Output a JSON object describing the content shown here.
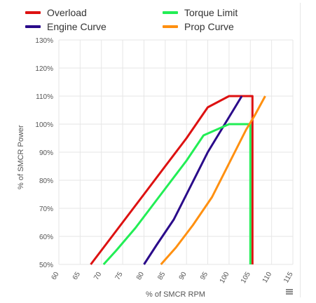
{
  "chart_data": {
    "type": "line",
    "xlabel": "% of SMCR RPM",
    "ylabel": "% of SMCR Power",
    "xlim": [
      60,
      115
    ],
    "ylim": [
      50,
      130
    ],
    "x_ticks": [
      "60",
      "65",
      "70",
      "75",
      "80",
      "85",
      "90",
      "95",
      "100",
      "105",
      "110",
      "115"
    ],
    "y_ticks": [
      "50%",
      "60%",
      "70%",
      "80%",
      "90%",
      "100%",
      "110%",
      "120%",
      "130%"
    ],
    "grid": true,
    "legend_position": "top",
    "series": [
      {
        "name": "Overload",
        "color": "#dd1111",
        "points": [
          [
            67.5,
            50
          ],
          [
            71,
            57
          ],
          [
            75,
            65
          ],
          [
            80,
            75
          ],
          [
            85,
            85
          ],
          [
            90,
            95
          ],
          [
            95,
            106
          ],
          [
            100,
            110
          ],
          [
            103,
            110
          ],
          [
            105.5,
            110
          ],
          [
            105.5,
            50
          ]
        ]
      },
      {
        "name": "Engine Curve",
        "color": "#2a0a8a",
        "points": [
          [
            80,
            50
          ],
          [
            83,
            57
          ],
          [
            87,
            66
          ],
          [
            91,
            78
          ],
          [
            95,
            90
          ],
          [
            99,
            100
          ],
          [
            101,
            105
          ],
          [
            103,
            110
          ]
        ]
      },
      {
        "name": "Torque Limit",
        "color": "#22ee55",
        "points": [
          [
            70.5,
            50
          ],
          [
            73.5,
            55
          ],
          [
            78,
            63
          ],
          [
            82,
            71
          ],
          [
            86,
            79
          ],
          [
            90,
            87
          ],
          [
            94,
            96
          ],
          [
            100,
            100
          ],
          [
            105,
            100
          ],
          [
            105,
            50
          ]
        ]
      },
      {
        "name": "Prop Curve",
        "color": "#ff9010",
        "points": [
          [
            84,
            50
          ],
          [
            87.5,
            56
          ],
          [
            91.5,
            64
          ],
          [
            96,
            74
          ],
          [
            100,
            86
          ],
          [
            104,
            98
          ],
          [
            106,
            103
          ],
          [
            108.5,
            110
          ]
        ]
      }
    ]
  }
}
